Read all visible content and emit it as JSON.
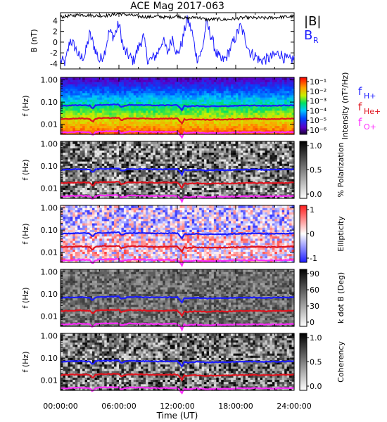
{
  "title": "ACE Mag 2017-063",
  "chart_data": {
    "type": "multi-panel spectrogram",
    "x_axis": {
      "label": "Time (UT)",
      "range_hours": [
        0,
        24
      ],
      "tick_labels": [
        "00:00:00",
        "06:00:00",
        "12:00:00",
        "18:00:00",
        "24:00:00"
      ],
      "tick_hours": [
        0,
        6,
        12,
        18,
        24
      ]
    },
    "mag_panel": {
      "ylabel": "B (nT)",
      "ylim": [
        -5,
        5.5
      ],
      "yticks": [
        "4",
        "2",
        "0",
        "-2",
        "-4"
      ],
      "ytick_values": [
        4,
        2,
        0,
        -2,
        -4
      ],
      "legend": [
        {
          "text": "|B|",
          "color": "#000000"
        },
        {
          "text": "B",
          "sub": "R",
          "color": "#1c1cff"
        }
      ],
      "series_b_total": {
        "name": "|B|",
        "color": "#000000",
        "x_hours": [
          0,
          1,
          2,
          3,
          4,
          5,
          6,
          7,
          8,
          9,
          10,
          11,
          12,
          13,
          14,
          15,
          16,
          17,
          18,
          19,
          20,
          21,
          22,
          23,
          24
        ],
        "values": [
          4.7,
          4.9,
          5.1,
          5.0,
          4.9,
          5.0,
          5.3,
          5.1,
          4.8,
          4.7,
          4.8,
          4.6,
          4.9,
          4.4,
          4.7,
          4.2,
          4.3,
          4.2,
          4.4,
          4.6,
          4.5,
          4.5,
          4.6,
          4.7,
          4.8
        ]
      },
      "series_b_radial": {
        "name": "B_R",
        "color": "#1c1cff",
        "x_hours": [
          0,
          0.5,
          1,
          1.5,
          2,
          2.5,
          3,
          3.5,
          4,
          4.5,
          5,
          5.5,
          6,
          6.5,
          7,
          7.5,
          8,
          8.5,
          9,
          9.5,
          10,
          10.5,
          11,
          11.5,
          12,
          12.5,
          13,
          13.5,
          14,
          14.5,
          15,
          15.5,
          16,
          16.5,
          17,
          17.5,
          18,
          18.5,
          19,
          19.5,
          20,
          20.5,
          21,
          21.5,
          22,
          22.5,
          23,
          23.5,
          24
        ],
        "values": [
          -3.5,
          -3.8,
          0.5,
          -1.0,
          -3.0,
          -2.5,
          1.5,
          -1.0,
          -3.5,
          -2.0,
          2.0,
          1.0,
          3.5,
          -1.5,
          -2.5,
          -3.5,
          -1.0,
          1.0,
          -3.5,
          -3.0,
          -2.0,
          0.5,
          -2.0,
          1.0,
          -2.5,
          0.0,
          4.5,
          2.0,
          -3.0,
          -2.0,
          3.5,
          1.0,
          -2.0,
          -3.5,
          -3.0,
          -1.0,
          1.0,
          3.0,
          0.5,
          -2.0,
          -2.5,
          -3.5,
          -3.2,
          -3.0,
          -2.5,
          -2.0,
          -3.0,
          -3.5,
          -3.0
        ]
      }
    },
    "spectrogram_panels": [
      {
        "ylabel": "f (Hz)",
        "colorbar_label": "Intensity (nT²/Hz)",
        "colorbar_ticks": [
          "10⁻¹",
          "10⁻²",
          "10⁻³",
          "10⁻⁴",
          "10⁻⁵",
          "10⁻⁶"
        ],
        "colormap": "rainbow",
        "right_legend": [
          {
            "text": "f",
            "sub": "H+",
            "color": "#1c1cff"
          },
          {
            "text": "f",
            "sub": "He+",
            "color": "#e0141e"
          },
          {
            "text": "f",
            "sub": "O+",
            "color": "#ff2bff"
          }
        ]
      },
      {
        "ylabel": "f (Hz)",
        "colorbar_label": "% Polarization",
        "colorbar_ticks": [
          "1.0",
          "0.5",
          "0.0"
        ],
        "colormap": "grayscale"
      },
      {
        "ylabel": "f (Hz)",
        "colorbar_label": "Ellipticity",
        "colorbar_ticks": [
          "1",
          "0",
          "-1"
        ],
        "colormap": "blue-white-red"
      },
      {
        "ylabel": "f (Hz)",
        "colorbar_label": "k dot B (Deg)",
        "colorbar_ticks": [
          "90",
          "60",
          "30",
          "0"
        ],
        "colormap": "grayscale"
      },
      {
        "ylabel": "f (Hz)",
        "colorbar_label": "Coherency",
        "colorbar_ticks": [
          "1.0",
          "0.5",
          "0.0"
        ],
        "colormap": "grayscale"
      }
    ],
    "frequency_axis": {
      "scale": "log",
      "ylim_hz": [
        0.0035,
        1.3
      ],
      "yticks": [
        "1.00",
        "0.10",
        "0.01"
      ],
      "ytick_values": [
        1.0,
        0.1,
        0.01
      ]
    },
    "gyrofrequency_lines": {
      "x_hours": [
        0,
        1,
        2,
        3,
        3.3,
        3.6,
        4,
        5,
        6,
        6.2,
        7,
        8,
        9,
        10,
        11,
        12,
        12.5,
        12.7,
        13,
        14,
        15,
        16,
        17,
        18,
        19,
        20,
        21,
        22,
        23,
        24
      ],
      "f_H_hz": [
        0.067,
        0.071,
        0.073,
        0.07,
        0.05,
        0.071,
        0.075,
        0.076,
        0.078,
        0.06,
        0.075,
        0.073,
        0.072,
        0.07,
        0.072,
        0.072,
        0.04,
        0.068,
        0.063,
        0.068,
        0.063,
        0.066,
        0.065,
        0.068,
        0.069,
        0.07,
        0.068,
        0.069,
        0.07,
        0.072
      ],
      "f_He_hz": [
        0.0168,
        0.0178,
        0.0183,
        0.0175,
        0.0125,
        0.0178,
        0.0188,
        0.019,
        0.0195,
        0.015,
        0.0188,
        0.0183,
        0.018,
        0.0175,
        0.018,
        0.018,
        0.01,
        0.017,
        0.0158,
        0.017,
        0.0158,
        0.0165,
        0.0163,
        0.017,
        0.0173,
        0.0175,
        0.017,
        0.0173,
        0.0175,
        0.018
      ],
      "f_O_hz": [
        0.0042,
        0.0044,
        0.0046,
        0.0044,
        0.0031,
        0.0044,
        0.0047,
        0.0048,
        0.0049,
        0.0038,
        0.0047,
        0.0046,
        0.0045,
        0.0044,
        0.0045,
        0.0045,
        0.0025,
        0.0043,
        0.0039,
        0.0043,
        0.0039,
        0.0041,
        0.0041,
        0.0043,
        0.0043,
        0.0044,
        0.0043,
        0.0043,
        0.0044,
        0.0045
      ],
      "colors": {
        "H": "#1c1cff",
        "He": "#e0141e",
        "O": "#ff2bff"
      }
    }
  }
}
